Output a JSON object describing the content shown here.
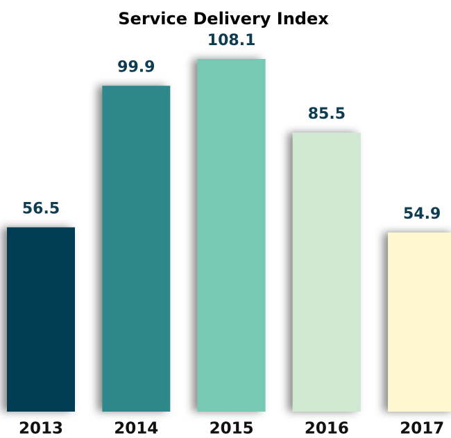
{
  "chart_data": {
    "type": "bar",
    "title": "Service Delivery Index",
    "categories": [
      "2013",
      "2014",
      "2015",
      "2016",
      "2017"
    ],
    "values": [
      56.5,
      99.9,
      108.1,
      85.5,
      54.9
    ],
    "colors": [
      "#033d52",
      "#2e878a",
      "#78c9b3",
      "#d0e8d0",
      "#fdf8d0"
    ]
  }
}
